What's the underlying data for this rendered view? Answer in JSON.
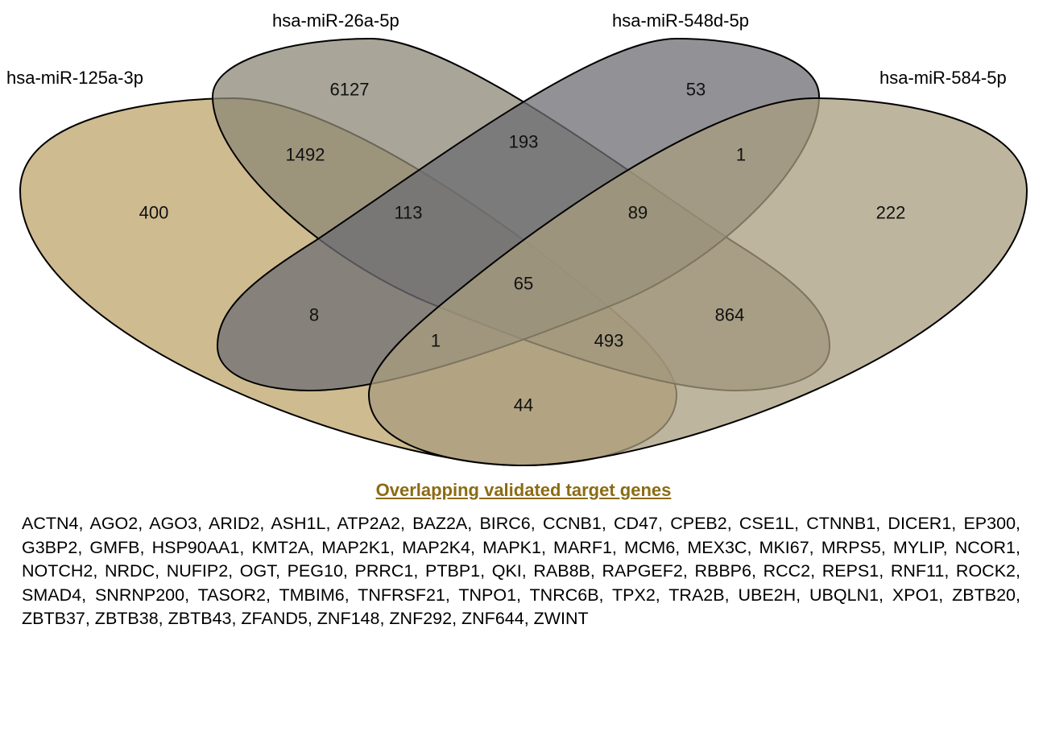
{
  "sets": [
    {
      "name": "hsa-miR-125a-3p",
      "fill": "#BDA46A"
    },
    {
      "name": "hsa-miR-26a-5p",
      "fill": "#8C8776"
    },
    {
      "name": "hsa-miR-548d-5p",
      "fill": "#6E6E73"
    },
    {
      "name": "hsa-miR-584-5p",
      "fill": "#A89C7F"
    }
  ],
  "regions": {
    "a_only": "400",
    "b_only": "6127",
    "c_only": "53",
    "d_only": "222",
    "ab": "1492",
    "bc": "193",
    "cd": "1",
    "ad": "44",
    "abc": "113",
    "bcd": "89",
    "ac": "8",
    "bd": "864",
    "acd": "1",
    "abd": "493",
    "abcd": "65"
  },
  "gene_list_title": "Overlapping validated target genes",
  "title_color": "#8B6B14",
  "gene_list": "ACTN4, AGO2, AGO3, ARID2, ASH1L, ATP2A2, BAZ2A, BIRC6, CCNB1, CD47, CPEB2, CSE1L, CTNNB1, DICER1, EP300, G3BP2, GMFB, HSP90AA1, KMT2A, MAP2K1, MAP2K4, MAPK1, MARF1, MCM6, MEX3C, MKI67, MRPS5, MYLIP, NCOR1, NOTCH2, NRDC, NUFIP2, OGT, PEG10, PRRC1, PTBP1, QKI, RAB8B, RAPGEF2, RBBP6, RCC2, REPS1, RNF11, ROCK2, SMAD4, SNRNP200, TASOR2, TMBIM6, TNFRSF21, TNPO1, TNRC6B, TPX2, TRA2B, UBE2H, UBQLN1, XPO1, ZBTB20, ZBTB37, ZBTB38, ZBTB43, ZFAND5, ZNF148, ZNF292, ZNF644, ZWINT"
}
